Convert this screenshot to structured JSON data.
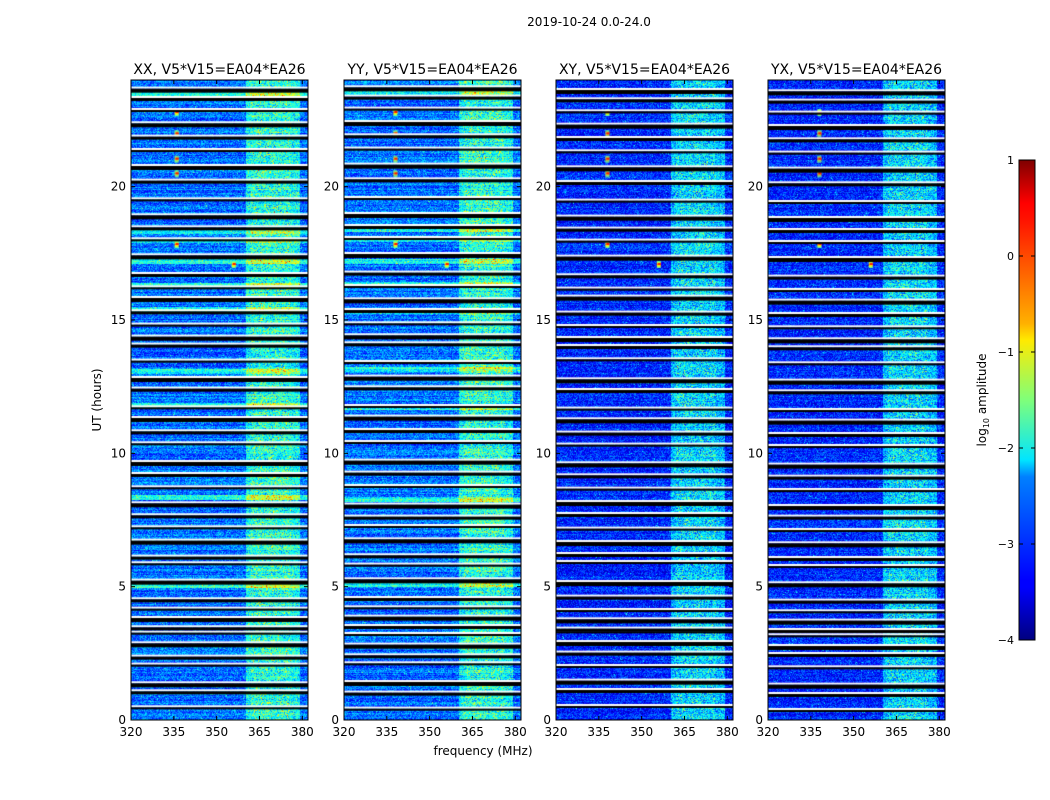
{
  "chart_data": {
    "type": "heatmap",
    "suptitle": "2019-10-24 0.0-24.0",
    "xlabel": "frequency (MHz)",
    "ylabel": "UT (hours)",
    "xlim": [
      320,
      382
    ],
    "ylim": [
      0,
      24
    ],
    "xticks": [
      320,
      335,
      350,
      365,
      380
    ],
    "yticks": [
      0,
      5,
      10,
      15,
      20
    ],
    "panels": [
      {
        "title": "XX, V5*V15=EA04*EA26",
        "gap_hours": [
          0.55,
          1.15,
          1.45,
          2.15,
          2.45,
          2.95,
          3.35,
          3.55,
          3.9,
          4.25,
          4.6,
          5.3,
          5.95,
          6.2,
          6.8,
          7.3,
          7.75,
          8.2,
          8.8,
          9.3,
          9.75,
          10.45,
          10.9,
          11.4,
          11.8,
          12.5,
          12.9,
          13.55,
          14.15,
          14.45,
          14.9,
          15.4,
          15.9,
          16.3,
          16.8,
          17.5,
          18.1,
          18.55,
          19.0,
          19.6,
          20.3,
          20.85,
          21.45,
          21.95,
          22.45,
          22.95,
          23.4,
          23.75
        ],
        "bright_rows": [
          5.05,
          8.35,
          11.8,
          13.1,
          15.4,
          16.3,
          17.2,
          18.0,
          18.35,
          23.5
        ],
        "hot_spots": [
          [
            336,
            17.85
          ],
          [
            336,
            20.5
          ],
          [
            336,
            21.05
          ],
          [
            336,
            22.0
          ],
          [
            336,
            22.8
          ],
          [
            356,
            17.1
          ]
        ]
      },
      {
        "title": "YY, V5*V15=EA04*EA26",
        "gap_hours": [
          0.5,
          1.1,
          1.5,
          2.2,
          2.5,
          2.9,
          3.3,
          3.6,
          3.95,
          4.3,
          4.65,
          5.35,
          5.9,
          6.25,
          6.85,
          7.35,
          7.7,
          8.15,
          8.85,
          9.35,
          9.8,
          10.5,
          10.95,
          11.45,
          11.85,
          12.55,
          12.95,
          13.5,
          14.2,
          14.5,
          14.95,
          15.45,
          15.85,
          16.35,
          16.85,
          17.55,
          18.15,
          18.6,
          19.05,
          19.65,
          20.35,
          20.9,
          21.5,
          22.0,
          22.5,
          23.0,
          23.45,
          23.8
        ],
        "bright_rows": [
          5.1,
          8.3,
          11.75,
          13.15,
          15.35,
          16.35,
          17.2,
          18.05,
          18.4,
          23.55
        ],
        "hot_spots": [
          [
            338,
            17.85
          ],
          [
            338,
            20.5
          ],
          [
            338,
            21.05
          ],
          [
            338,
            22.0
          ],
          [
            338,
            22.8
          ],
          [
            356,
            17.1
          ]
        ]
      },
      {
        "title": "XY, V5*V15=EA04*EA26",
        "gap_hours": [
          0.6,
          1.2,
          1.55,
          2.1,
          2.6,
          3.0,
          3.4,
          3.5,
          3.85,
          4.2,
          4.7,
          5.25,
          6.0,
          6.3,
          6.75,
          7.25,
          7.8,
          8.25,
          8.75,
          9.25,
          9.7,
          10.4,
          10.85,
          11.35,
          11.75,
          12.45,
          12.85,
          13.6,
          14.1,
          14.4,
          14.85,
          15.35,
          15.95,
          16.25,
          16.75,
          17.45,
          18.05,
          18.5,
          18.95,
          19.55,
          20.25,
          20.8,
          21.4,
          21.9,
          22.4,
          22.9,
          23.35,
          23.7
        ],
        "bright_rows": [],
        "hot_spots": [
          [
            338,
            17.85
          ],
          [
            338,
            20.5
          ],
          [
            338,
            21.05
          ],
          [
            338,
            22.0
          ],
          [
            338,
            22.8
          ],
          [
            356,
            17.1
          ]
        ]
      },
      {
        "title": "YX, V5*V15=EA04*EA26",
        "gap_hours": [
          0.45,
          1.05,
          1.4,
          2.05,
          2.55,
          2.85,
          3.25,
          3.45,
          3.8,
          4.15,
          4.55,
          5.2,
          5.85,
          6.15,
          6.7,
          7.2,
          7.7,
          8.1,
          8.7,
          9.2,
          9.65,
          10.35,
          10.8,
          11.3,
          11.7,
          12.4,
          12.8,
          13.45,
          14.05,
          14.35,
          14.8,
          15.3,
          15.8,
          16.2,
          16.7,
          17.4,
          18.0,
          18.45,
          18.9,
          19.5,
          20.2,
          20.75,
          21.35,
          21.85,
          22.35,
          22.85,
          23.3,
          23.65
        ],
        "bright_rows": [],
        "hot_spots": [
          [
            338,
            17.85
          ],
          [
            338,
            20.5
          ],
          [
            338,
            21.05
          ],
          [
            338,
            22.0
          ],
          [
            338,
            22.8
          ],
          [
            356,
            17.1
          ]
        ]
      }
    ],
    "colorbar": {
      "label": "log10 amplitude",
      "label_base": "log",
      "label_sub": "10",
      "label_rest": " amplitude",
      "range": [
        -4,
        1
      ],
      "ticks": [
        -4,
        -3,
        -2,
        -1,
        0,
        1
      ],
      "tick_labels": [
        "−4",
        "−3",
        "−2",
        "−1",
        "0",
        "1"
      ],
      "colormap": "jet"
    }
  }
}
